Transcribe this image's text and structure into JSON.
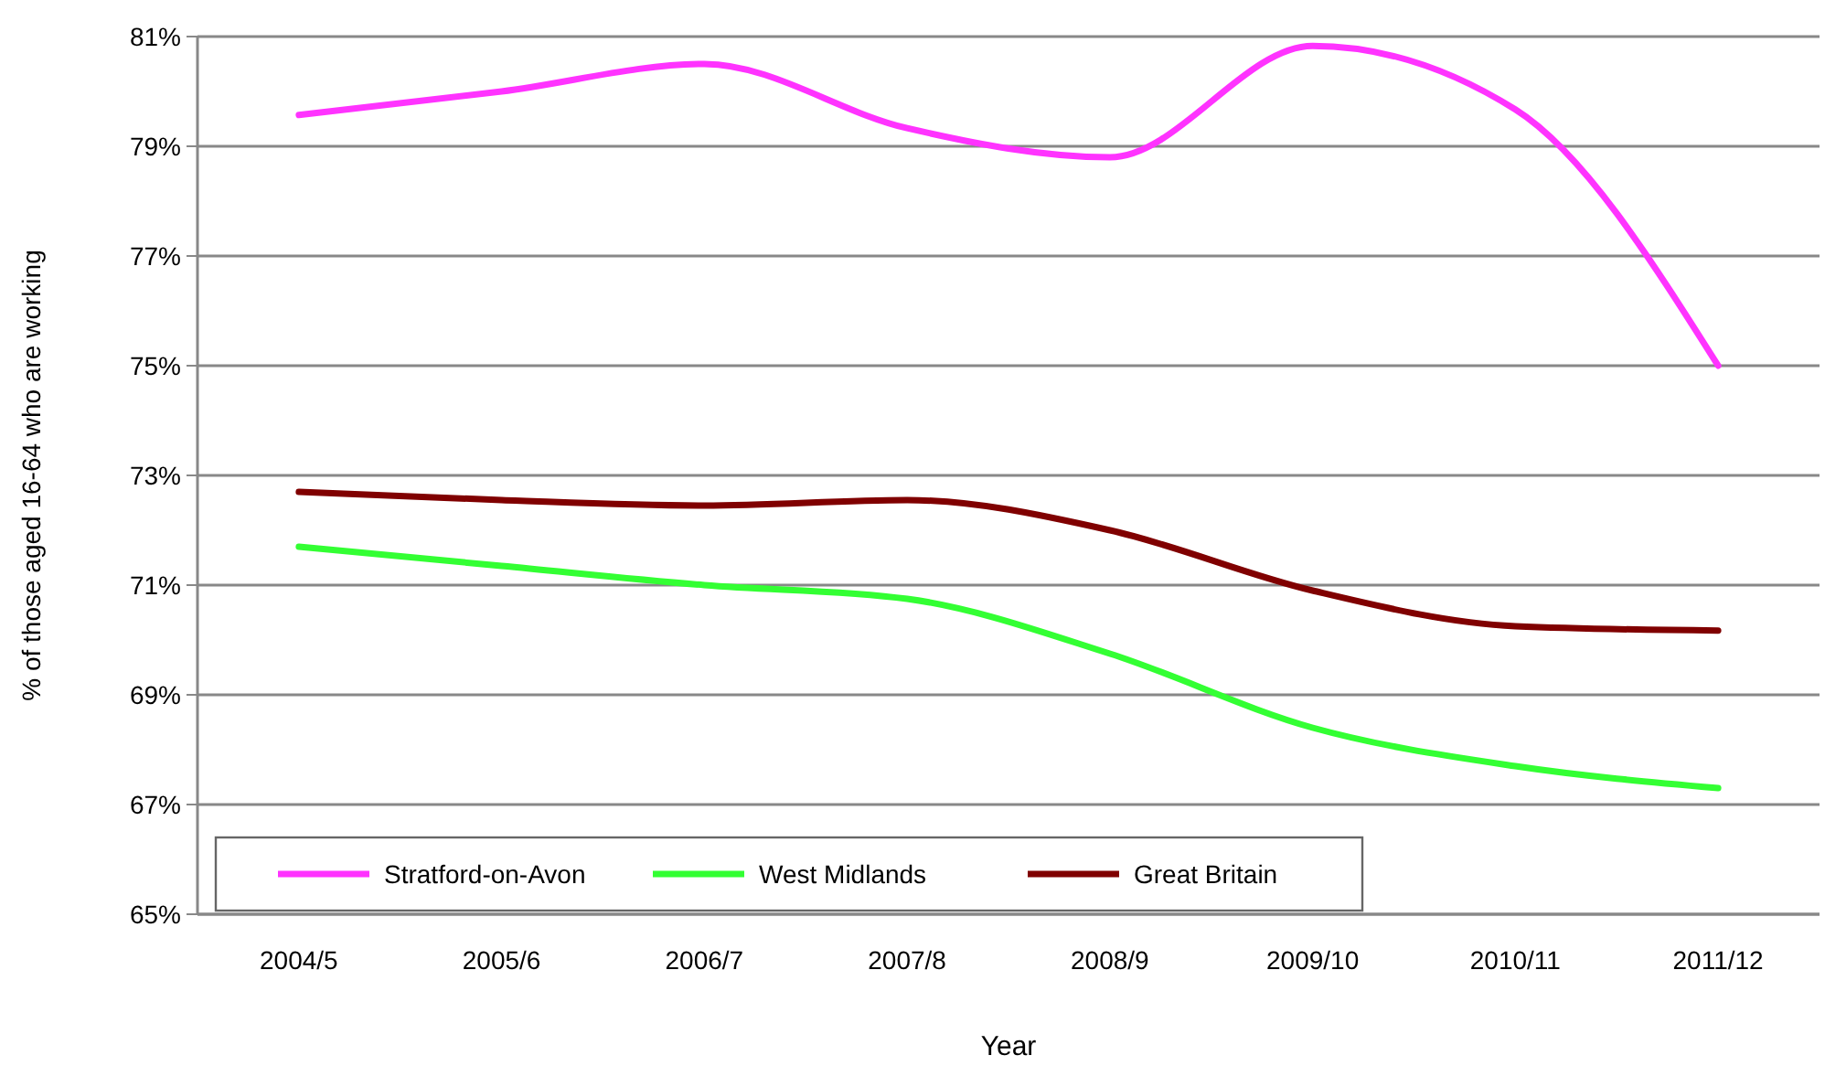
{
  "chart_data": {
    "type": "line",
    "xlabel": "Year",
    "ylabel": "% of those aged 16-64 who are working",
    "categories": [
      "2004/5",
      "2005/6",
      "2006/7",
      "2007/8",
      "2008/9",
      "2009/10",
      "2010/11",
      "2011/12"
    ],
    "series": [
      {
        "name": "Stratford-on-Avon",
        "color": "#ff33ff",
        "values": [
          79.57,
          80.0,
          80.5,
          79.33,
          78.8,
          80.83,
          79.67,
          75.0
        ]
      },
      {
        "name": "West Midlands",
        "color": "#33ff33",
        "values": [
          71.7,
          71.35,
          71.0,
          70.75,
          69.75,
          68.4,
          67.7,
          67.3
        ]
      },
      {
        "name": "Great Britain",
        "color": "#800000",
        "values": [
          72.7,
          72.55,
          72.45,
          72.55,
          72.0,
          70.9,
          70.25,
          70.17
        ]
      }
    ],
    "ylim": [
      65,
      81
    ],
    "yticks": [
      {
        "value": 65,
        "label": "65%"
      },
      {
        "value": 67,
        "label": "67%"
      },
      {
        "value": 69,
        "label": "69%"
      },
      {
        "value": 71,
        "label": "71%"
      },
      {
        "value": 73,
        "label": "73%"
      },
      {
        "value": 75,
        "label": "75%"
      },
      {
        "value": 77,
        "label": "77%"
      },
      {
        "value": 79,
        "label": "79%"
      },
      {
        "value": 81,
        "label": "81%"
      }
    ],
    "grid": "y",
    "legend": "bottom left",
    "marker": "none",
    "line_style": "solid"
  }
}
